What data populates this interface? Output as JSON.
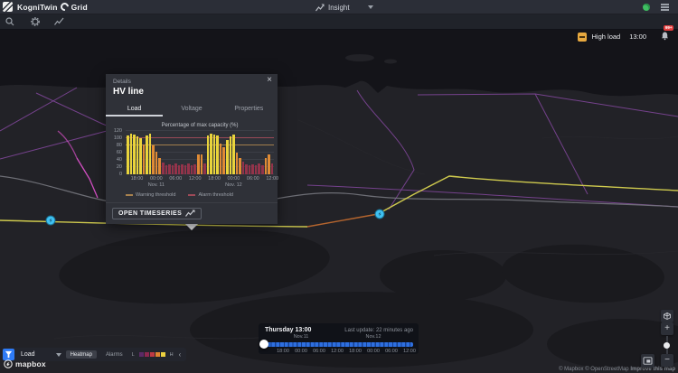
{
  "topbar": {
    "app_name": "KogniTwin",
    "product_name": "Grid",
    "mode_label": "Insight",
    "notification_badge": "99+"
  },
  "statusbar": {
    "event_label": "High load",
    "event_time": "13:00"
  },
  "popup": {
    "header": "Details",
    "close_label": "×",
    "title": "HV line",
    "tabs": [
      "Load",
      "Voltage",
      "Properties"
    ],
    "active_tab_index": 0,
    "open_timeseries_label": "OPEN TIMESERIES"
  },
  "chart_data": {
    "type": "bar",
    "title": "Percentage of max capacity (%)",
    "ylabel": "",
    "xlabel": "",
    "ylim": [
      0,
      120
    ],
    "yticks": [
      0,
      20,
      40,
      60,
      80,
      100,
      120
    ],
    "grid": true,
    "legend_position": "bottom",
    "values": [
      108,
      112,
      110,
      106,
      100,
      82,
      108,
      112,
      80,
      62,
      45,
      32,
      26,
      28,
      25,
      30,
      25,
      28,
      25,
      30,
      26,
      28,
      55,
      56,
      30,
      108,
      112,
      110,
      107,
      85,
      75,
      95,
      105,
      110,
      60,
      45,
      35,
      28,
      25,
      28,
      26,
      30,
      25,
      45,
      55,
      30
    ],
    "xticks": [
      {
        "label": "18:00",
        "bar": 3
      },
      {
        "label": "00:00",
        "bar": 9,
        "sub": "Nov. 11"
      },
      {
        "label": "06:00",
        "bar": 15
      },
      {
        "label": "12:00",
        "bar": 21
      },
      {
        "label": "18:00",
        "bar": 27
      },
      {
        "label": "00:00",
        "bar": 33,
        "sub": "Nov. 12"
      },
      {
        "label": "06:00",
        "bar": 39
      },
      {
        "label": "12:00",
        "bar": 45
      }
    ],
    "thresholds": {
      "warning": 80,
      "alarm": 100
    },
    "legend": [
      {
        "label": "Warning threshold",
        "color": "#a8824e"
      },
      {
        "label": "Alarm threshold",
        "color": "#9e4a58"
      }
    ],
    "colors": {
      "high": "#e9d43c",
      "mid": "#e08b35",
      "low": "#93334a"
    }
  },
  "timeline": {
    "current_label": "Thursday 13:00",
    "last_update": "Last update: 22 minutes ago",
    "dates": [
      {
        "label": "Nov.11",
        "tick": 1
      },
      {
        "label": "Nov.12",
        "tick": 5
      }
    ],
    "times": [
      "18:00",
      "00:00",
      "06:00",
      "12:00",
      "18:00",
      "00:00",
      "06:00",
      "12:00"
    ],
    "track_color": "#2e6fe0"
  },
  "layerbar": {
    "layer_label": "Load",
    "toggles": [
      {
        "label": "Heatmap",
        "active": true
      },
      {
        "label": "Alarms",
        "active": false
      }
    ],
    "legend": {
      "low_label": "L",
      "high_label": "H",
      "colors": [
        "#5b2a66",
        "#8c2750",
        "#bf3a44",
        "#e08430",
        "#ecd03f"
      ]
    },
    "collapse_label": "‹"
  },
  "map": {
    "brand": "mapbox",
    "attribution": [
      "© Mapbox",
      "© OpenStreetMap",
      "Improve this map"
    ],
    "controls": {
      "zoom_in": "+",
      "zoom_out": "−"
    },
    "marker_color": "#3fc1f2"
  }
}
